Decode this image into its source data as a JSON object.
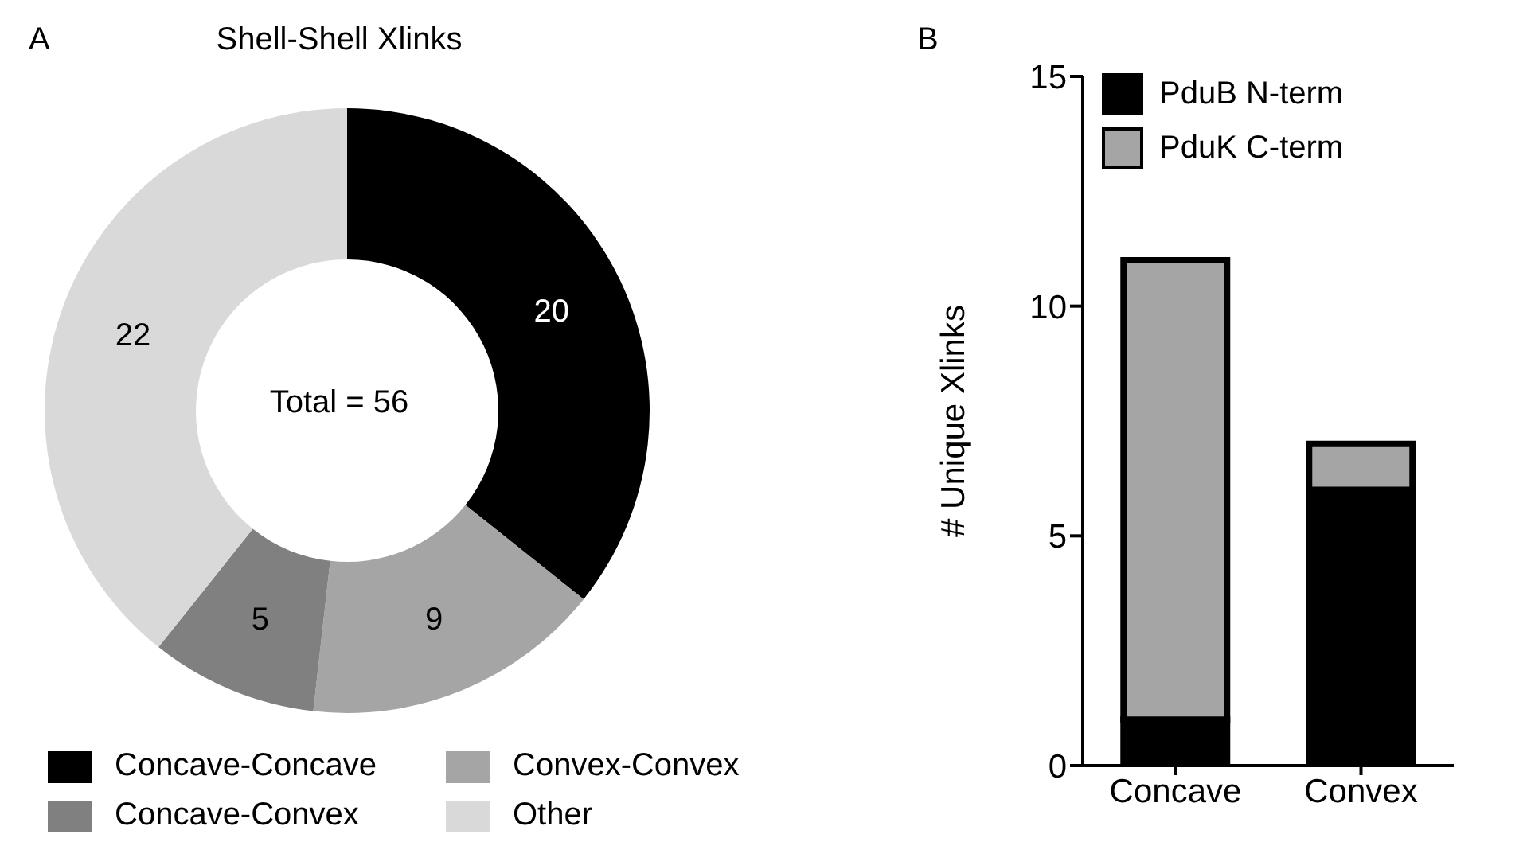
{
  "chart_data": [
    {
      "type": "donut",
      "title": "Shell-Shell Xlinks",
      "categories": [
        "Concave-Concave",
        "Convex-Convex",
        "Concave-Convex",
        "Other"
      ],
      "values": [
        20,
        9,
        5,
        22
      ],
      "colors": [
        "#000000",
        "#a5a5a5",
        "#808080",
        "#d9d9d9"
      ],
      "data_labels": true,
      "legend": "bottom",
      "annotations": [
        "A",
        "Total = 56"
      ]
    },
    {
      "type": "bar",
      "stacked": true,
      "categories": [
        "Concave",
        "Convex"
      ],
      "ylabel": "# Unique Xlinks",
      "ylim": [
        0,
        15
      ],
      "yticks": [
        0,
        5,
        10,
        15
      ],
      "legend": "top left",
      "grid": false,
      "annotations": [
        "B"
      ],
      "series": [
        {
          "name": "PduB N-term",
          "color": "#000000",
          "values": [
            1,
            6
          ]
        },
        {
          "name": "PduK C-term",
          "color": "#a5a5a5",
          "values": [
            10,
            1
          ]
        }
      ]
    }
  ]
}
